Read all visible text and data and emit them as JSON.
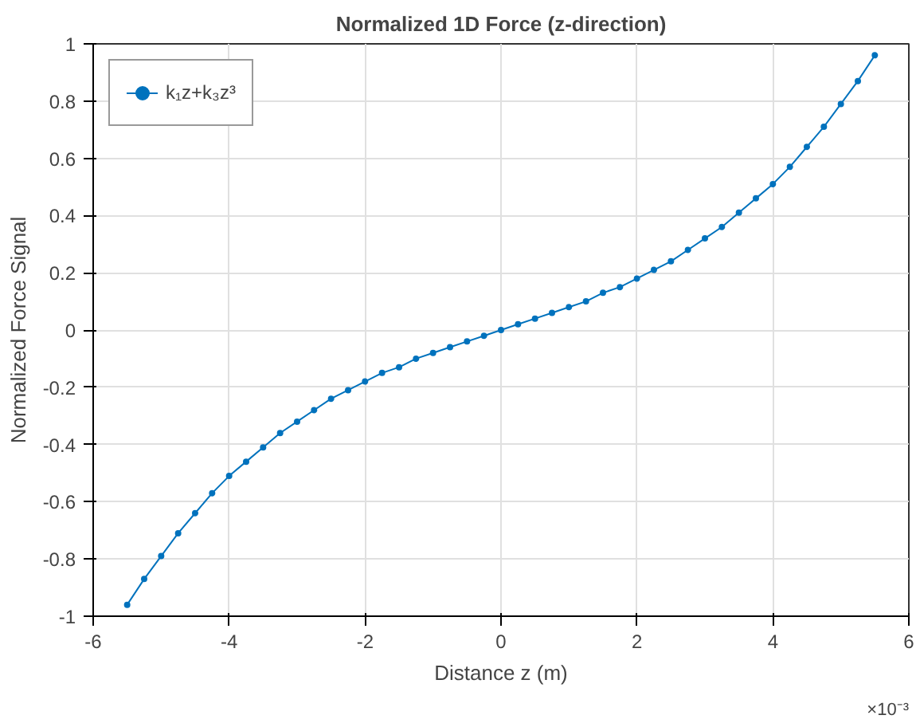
{
  "chart_data": {
    "type": "line",
    "title": "Normalized 1D Force (z-direction)",
    "xlabel": "Distance z (m)",
    "ylabel": "Normalized Force Signal",
    "x": [
      -5.5,
      -5.25,
      -5,
      -4.75,
      -4.5,
      -4.25,
      -4,
      -3.75,
      -3.5,
      -3.25,
      -3,
      -2.75,
      -2.5,
      -2.25,
      -2,
      -1.75,
      -1.5,
      -1.25,
      -1,
      -0.75,
      -0.5,
      -0.25,
      0,
      0.25,
      0.5,
      0.75,
      1,
      1.25,
      1.5,
      1.75,
      2,
      2.25,
      2.5,
      2.75,
      3,
      3.25,
      3.5,
      3.75,
      4,
      4.25,
      4.5,
      4.75,
      5,
      5.25,
      5.5
    ],
    "series": [
      {
        "name": "k₁z+k₃z³",
        "color": "#0072bd",
        "values": [
          -0.96,
          -0.87,
          -0.79,
          -0.71,
          -0.64,
          -0.57,
          -0.51,
          -0.46,
          -0.41,
          -0.36,
          -0.32,
          -0.28,
          -0.24,
          -0.21,
          -0.18,
          -0.15,
          -0.13,
          -0.1,
          -0.08,
          -0.06,
          -0.04,
          -0.02,
          0,
          0.02,
          0.04,
          0.06,
          0.08,
          0.1,
          0.13,
          0.15,
          0.18,
          0.21,
          0.24,
          0.28,
          0.32,
          0.36,
          0.41,
          0.46,
          0.51,
          0.57,
          0.64,
          0.71,
          0.79,
          0.87,
          0.96
        ]
      }
    ],
    "xlim": [
      -6,
      6
    ],
    "xticks": [
      -6,
      -4,
      -2,
      0,
      2,
      4,
      6
    ],
    "ylim": [
      -1,
      1
    ],
    "yticks": [
      -1,
      -0.8,
      -0.6,
      -0.4,
      -0.2,
      0,
      0.2,
      0.4,
      0.6,
      0.8,
      1
    ],
    "annotations": [
      "×10⁻³"
    ],
    "grid": true,
    "legend": "top left",
    "marker": "circle",
    "line_style": "solid"
  }
}
